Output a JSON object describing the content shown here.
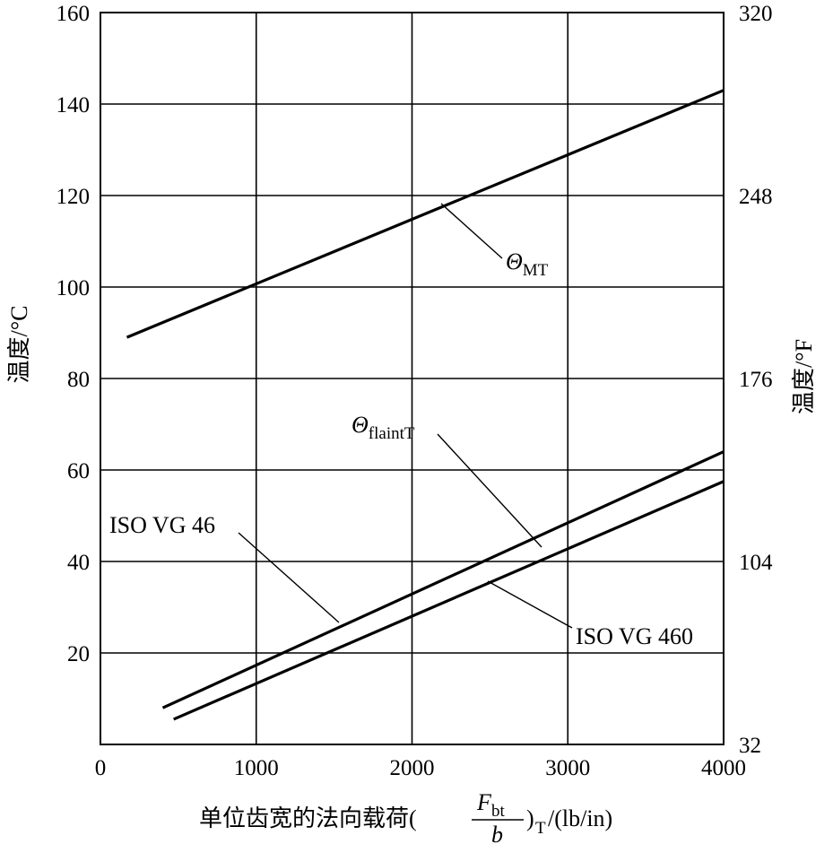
{
  "chart_data": {
    "type": "line",
    "x": [
      0,
      1000,
      2000,
      3000,
      4000
    ],
    "xlim": [
      0,
      4000
    ],
    "ylim": [
      0,
      160
    ],
    "y2lim": [
      32,
      320
    ],
    "grid": true,
    "x_ticks": [
      "0",
      "1000",
      "2000",
      "3000",
      "4000"
    ],
    "y_ticks": [
      "20",
      "40",
      "60",
      "80",
      "100",
      "120",
      "140",
      "160"
    ],
    "y2_ticks": [
      "32",
      "104",
      "176",
      "248",
      "320"
    ],
    "ylabel": "温度/°C",
    "y2label": "温度/°F",
    "xlabel": {
      "prefix": "单位齿宽的法向载荷(",
      "numerator": "F",
      "numerator_sub": "bt",
      "denominator": "b",
      "suffix_sub": "T",
      "suffix": "/(lb/in)"
    },
    "series": [
      {
        "name": "Θ_MT",
        "x": [
          170,
          4000
        ],
        "y": [
          89,
          143
        ]
      },
      {
        "name": "ISO VG 46",
        "x": [
          400,
          4000
        ],
        "y": [
          8,
          64
        ]
      },
      {
        "name": "ISO VG 460",
        "x": [
          470,
          4000
        ],
        "y": [
          5.5,
          57.5
        ]
      }
    ],
    "annotations": {
      "theta_symbol": "Θ",
      "mt_sub": "MT",
      "flaint_sub": "flaintT",
      "vg46": "ISO VG 46",
      "vg460": "ISO VG 460"
    }
  }
}
